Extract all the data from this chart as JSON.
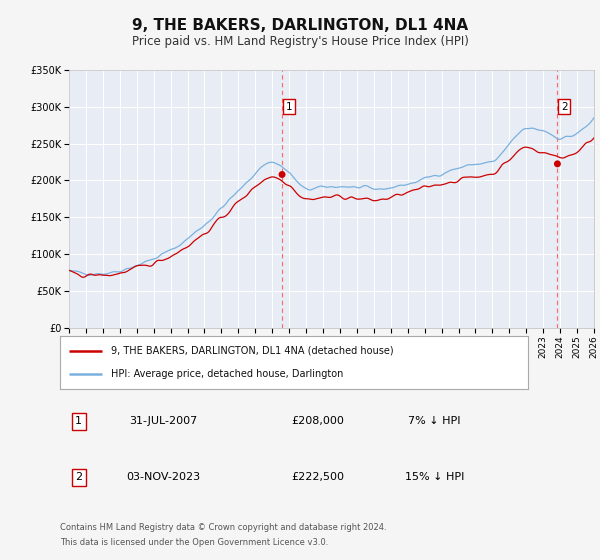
{
  "title": "9, THE BAKERS, DARLINGTON, DL1 4NA",
  "subtitle": "Price paid vs. HM Land Registry's House Price Index (HPI)",
  "background_color": "#f5f5f5",
  "plot_bg_color": "#e8edf5",
  "grid_color": "#ffffff",
  "ylim": [
    0,
    350000
  ],
  "yticks": [
    0,
    50000,
    100000,
    150000,
    200000,
    250000,
    300000,
    350000
  ],
  "ytick_labels": [
    "£0",
    "£50K",
    "£100K",
    "£150K",
    "£200K",
    "£250K",
    "£300K",
    "£350K"
  ],
  "sale1_year": 2007.58,
  "sale1_price": 208000,
  "sale2_year": 2023.84,
  "sale2_price": 222500,
  "legend_entry1": "9, THE BAKERS, DARLINGTON, DL1 4NA (detached house)",
  "legend_entry2": "HPI: Average price, detached house, Darlington",
  "row1": [
    "1",
    "31-JUL-2007",
    "£208,000",
    "7% ↓ HPI"
  ],
  "row2": [
    "2",
    "03-NOV-2023",
    "£222,500",
    "15% ↓ HPI"
  ],
  "footer1": "Contains HM Land Registry data © Crown copyright and database right 2024.",
  "footer2": "This data is licensed under the Open Government Licence v3.0.",
  "hpi_color": "#7ab0de",
  "price_color": "#cc0000",
  "vline_color": "#ff6666",
  "xstart": 1995,
  "xend": 2026
}
